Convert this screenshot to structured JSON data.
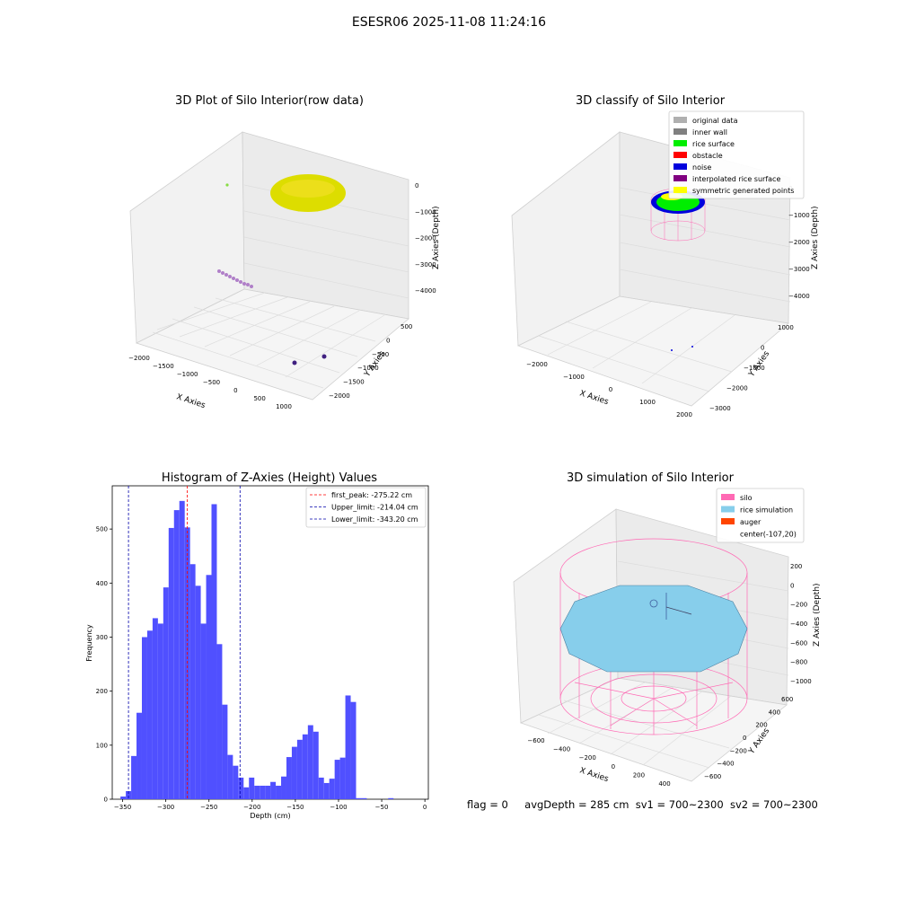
{
  "figure": {
    "suptitle": "ESESR06 2025-11-08 11:24:16",
    "status": {
      "flag": "flag = 0",
      "avg_depth": "avgDepth = 285 cm",
      "sv1": "sv1 = 700~2300",
      "sv2": "sv2 = 700~2300"
    }
  },
  "colors": {
    "hist_bar": "#5050ff",
    "first_peak": "#ff0000",
    "limit": "#0000aa",
    "silo": "#ff69b4",
    "rice_sim": "#87ceeb",
    "auger": "#ff4500",
    "yellow": "#e0e010",
    "green": "#00ee00",
    "blue": "#0000dd"
  },
  "chart_data": [
    {
      "type": "scatter3d",
      "title": "3D Plot of Silo Interior(row data)",
      "xlabel": "X Axies",
      "ylabel": "Y Axies",
      "zlabel": "Z Axies (Depth)",
      "xticks": [
        "−2000",
        "−1500",
        "−1000",
        "−500",
        "0",
        "500",
        "1000"
      ],
      "yticks": [
        "500",
        "0",
        "−500",
        "−1000",
        "−1500",
        "−2000"
      ],
      "zticks": [
        "0",
        "−1000",
        "−2000",
        "−3000",
        "−4000"
      ]
    },
    {
      "type": "scatter3d",
      "title": "3D classify of Silo Interior",
      "xlabel": "X Axies",
      "ylabel": "Y Axies",
      "zlabel": "Z Axies (Depth)",
      "xticks": [
        "−2000",
        "−1000",
        "0",
        "1000",
        "2000"
      ],
      "yticks": [
        "1000",
        "0",
        "−1000",
        "−2000",
        "−3000"
      ],
      "zticks": [
        "0",
        "−1000",
        "−2000",
        "−3000",
        "−4000"
      ],
      "legend": [
        {
          "label": "original data",
          "color": "#b0b0b0"
        },
        {
          "label": "inner wall",
          "color": "#808080"
        },
        {
          "label": "rice surface",
          "color": "#00ee00"
        },
        {
          "label": "obstacle",
          "color": "#ff0000"
        },
        {
          "label": "noise",
          "color": "#0000dd"
        },
        {
          "label": "interpolated rice surface",
          "color": "#800080"
        },
        {
          "label": "symmetric generated points",
          "color": "#ffff00"
        }
      ]
    },
    {
      "type": "bar",
      "title": "Histogram of Z-Axies (Height) Values",
      "xlabel": "Depth (cm)",
      "ylabel": "Frequency",
      "xlim": [
        -362,
        4
      ],
      "ylim": [
        0,
        580
      ],
      "xticks": [
        -350,
        -300,
        -250,
        -200,
        -150,
        -100,
        -50,
        0
      ],
      "yticks": [
        0,
        100,
        200,
        300,
        400,
        500
      ],
      "bin_width": 6.2,
      "bin_starts": [
        -352.5,
        -346.3,
        -340.1,
        -333.9,
        -327.7,
        -321.5,
        -315.3,
        -309.1,
        -302.9,
        -296.7,
        -290.5,
        -284.3,
        -278.1,
        -271.9,
        -265.7,
        -259.5,
        -253.3,
        -247.1,
        -240.9,
        -234.7,
        -228.5,
        -222.3,
        -216.1,
        -209.9,
        -203.7,
        -197.5,
        -191.3,
        -185.1,
        -178.9,
        -172.7,
        -166.5,
        -160.3,
        -154.1,
        -147.9,
        -141.7,
        -135.5,
        -129.3,
        -123.1,
        -116.9,
        -110.7,
        -104.5,
        -98.3,
        -92.1,
        -85.9,
        -79.7,
        -73.5,
        -67.3,
        -61.1,
        -54.9,
        -48.7,
        -42.5,
        -36.3,
        -30.1,
        -23.9,
        -17.7,
        -11.5
      ],
      "values": [
        5,
        15,
        80,
        160,
        300,
        312,
        335,
        325,
        392,
        502,
        535,
        552,
        503,
        435,
        395,
        325,
        415,
        546,
        287,
        175,
        82,
        62,
        40,
        22,
        40,
        25,
        25,
        25,
        32,
        25,
        42,
        78,
        97,
        110,
        120,
        137,
        125,
        40,
        30,
        38,
        73,
        77,
        192,
        180,
        2,
        2,
        0,
        0,
        0,
        0,
        2,
        0,
        0,
        0,
        0,
        0
      ],
      "vlines": [
        {
          "label": "first_peak: -275.22 cm",
          "x": -275.22,
          "color": "#ff0000"
        },
        {
          "label": "Upper_limit: -214.04 cm",
          "x": -214.04,
          "color": "#0000aa"
        },
        {
          "label": "Lower_limit: -343.20 cm",
          "x": -343.2,
          "color": "#0000aa"
        }
      ]
    },
    {
      "type": "surface3d",
      "title": "3D simulation of Silo Interior",
      "xlabel": "X Axies",
      "ylabel": "Y Axies",
      "zlabel": "Z Axies (Depth)",
      "xticks": [
        "−600",
        "−400",
        "−200",
        "0",
        "200",
        "400"
      ],
      "yticks": [
        "600",
        "400",
        "200",
        "0",
        "−200",
        "−400",
        "−600"
      ],
      "zticks": [
        "200",
        "0",
        "−200",
        "−400",
        "−600",
        "−800",
        "−1000"
      ],
      "legend": [
        {
          "label": "silo",
          "color": "#ff69b4"
        },
        {
          "label": "rice simulation",
          "color": "#87ceeb"
        },
        {
          "label": "auger",
          "color": "#ff4500"
        },
        {
          "label": "center(-107,20)",
          "color": ""
        }
      ]
    }
  ]
}
